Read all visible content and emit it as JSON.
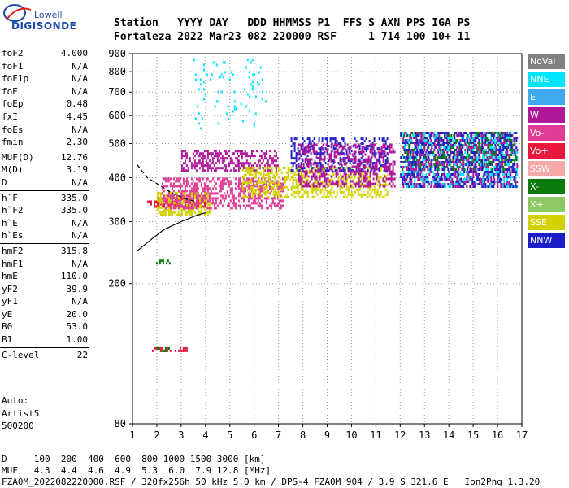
{
  "logo": {
    "line1": "Lowell",
    "line2": "DIGISONDE"
  },
  "header": {
    "line1": "Station   YYYY DAY   DDD HHMMSS P1  FFS S AXN PPS IGA PS",
    "line2": "Fortaleza 2022 Mar23 082 220000 RSF     1 714 100 10+ 11"
  },
  "params": {
    "group1": [
      {
        "k": "foF2",
        "v": "4.000"
      },
      {
        "k": "foF1",
        "v": "N/A"
      },
      {
        "k": "foF1p",
        "v": "N/A"
      },
      {
        "k": "foE",
        "v": "N/A"
      },
      {
        "k": "foEp",
        "v": "0.48"
      },
      {
        "k": "fxI",
        "v": "4.45"
      },
      {
        "k": "foEs",
        "v": "N/A"
      },
      {
        "k": "fmin",
        "v": "2.30"
      }
    ],
    "group2": [
      {
        "k": "MUF(D)",
        "v": "12.76"
      },
      {
        "k": "M(D)",
        "v": "3.19"
      },
      {
        "k": "D",
        "v": "N/A"
      }
    ],
    "group3": [
      {
        "k": "h`F",
        "v": "335.0"
      },
      {
        "k": "h`F2",
        "v": "335.0"
      },
      {
        "k": "h`E",
        "v": "N/A"
      },
      {
        "k": "h`Es",
        "v": "N/A"
      }
    ],
    "group4": [
      {
        "k": "hmF2",
        "v": "315.8"
      },
      {
        "k": "hmF1",
        "v": "N/A"
      },
      {
        "k": "hmE",
        "v": "110.0"
      },
      {
        "k": "yF2",
        "v": "39.9"
      },
      {
        "k": "yF1",
        "v": "N/A"
      },
      {
        "k": "yE",
        "v": "20.0"
      },
      {
        "k": "B0",
        "v": "53.0"
      },
      {
        "k": "B1",
        "v": "1.00"
      }
    ],
    "group5": [
      {
        "k": "C-level",
        "v": "22"
      }
    ]
  },
  "auto": {
    "line1": "Auto:",
    "line2": "Artist5",
    "line3": "500200"
  },
  "legend": [
    {
      "label": "NoVal",
      "color": "#808080"
    },
    {
      "label": "NNE",
      "color": "#00e5ff"
    },
    {
      "label": "E",
      "color": "#3ea8f0"
    },
    {
      "label": "W",
      "color": "#b0169a"
    },
    {
      "label": "Vo-",
      "color": "#e03c96"
    },
    {
      "label": "Vo+",
      "color": "#e8183c"
    },
    {
      "label": "SSW",
      "color": "#f5a8a8"
    },
    {
      "label": "X-",
      "color": "#0a7a0a"
    },
    {
      "label": "X+",
      "color": "#8cc864"
    },
    {
      "label": "SSE",
      "color": "#d2d200"
    },
    {
      "label": "NNW",
      "color": "#1e1ec8"
    }
  ],
  "footer": {
    "line1": "D     100  200  400  600  800 1000 1500 3000 [km]",
    "line2": "MUF   4.3  4.4  4.6  4.9  5.3  6.0  7.9 12.8 [MHz]",
    "line3": "FZA0M_2022082220000.RSF / 320fx256h 50 kHz 5.0 km / DPS-4 FZA0M 904 / 3.9 S 321.6 E   Ion2Png 1.3.20"
  },
  "chart_data": {
    "type": "scatter",
    "x_ticks": [
      "1",
      "2",
      "3",
      "4",
      "5",
      "6",
      "7",
      "8",
      "9",
      "10",
      "11",
      "12",
      "13",
      "14",
      "15",
      "16",
      "17"
    ],
    "y_ticks": [
      "80",
      "200",
      "300",
      "400",
      "500",
      "600",
      "700",
      "800",
      "900"
    ],
    "xlim": [
      1,
      17
    ],
    "ylim": [
      80,
      900
    ],
    "y_scale": "log",
    "grid": "dotted",
    "profile_curve": [
      [
        1.2,
        248
      ],
      [
        1.8,
        268
      ],
      [
        2.3,
        285
      ],
      [
        3.0,
        300
      ],
      [
        3.6,
        312
      ],
      [
        4.0,
        318
      ]
    ],
    "dashed_curve": [
      [
        1.2,
        435
      ],
      [
        1.6,
        400
      ],
      [
        2.0,
        385
      ],
      [
        2.6,
        362
      ],
      [
        3.2,
        348
      ],
      [
        3.6,
        342
      ]
    ],
    "trace_clusters": [
      {
        "direction": "Vo+",
        "x_range": [
          1.6,
          4.0
        ],
        "h_range": [
          330,
          350
        ],
        "density": 0.7
      },
      {
        "direction": "SSE",
        "x_range": [
          2.0,
          4.2
        ],
        "h_range": [
          315,
          365
        ],
        "density": 0.6
      },
      {
        "direction": "W",
        "x_range": [
          3.0,
          7.0
        ],
        "h_range": [
          420,
          480
        ],
        "density": 0.5
      },
      {
        "direction": "Vo-",
        "x_range": [
          2.2,
          7.2
        ],
        "h_range": [
          330,
          400
        ],
        "density": 0.5
      },
      {
        "direction": "SSE",
        "x_range": [
          5.5,
          11.5
        ],
        "h_range": [
          350,
          430
        ],
        "density": 0.45
      },
      {
        "direction": "NNW",
        "x_range": [
          7.5,
          11.5
        ],
        "h_range": [
          420,
          520
        ],
        "density": 0.4
      },
      {
        "direction": "W",
        "x_range": [
          7.8,
          11.8
        ],
        "h_range": [
          380,
          500
        ],
        "density": 0.4
      },
      {
        "direction": "NNE",
        "x_range": [
          12.1,
          16.8
        ],
        "h_range": [
          380,
          540
        ],
        "density": 0.45
      },
      {
        "direction": "W",
        "x_range": [
          12.1,
          16.8
        ],
        "h_range": [
          380,
          540
        ],
        "density": 0.35
      },
      {
        "direction": "X-",
        "x_range": [
          12.0,
          16.8
        ],
        "h_range": [
          420,
          540
        ],
        "density": 0.2
      },
      {
        "direction": "NNW",
        "x_range": [
          12.0,
          16.8
        ],
        "h_range": [
          380,
          540
        ],
        "density": 0.25
      },
      {
        "direction": "NNE",
        "x_range": [
          3.5,
          6.5
        ],
        "h_range": [
          550,
          870
        ],
        "density": 0.05
      },
      {
        "direction": "Vo+",
        "x_range": [
          1.8,
          3.3
        ],
        "h_range": [
          128,
          132
        ],
        "density": 0.6
      },
      {
        "direction": "X-",
        "x_range": [
          2.0,
          2.6
        ],
        "h_range": [
          128,
          132
        ],
        "density": 0.6
      },
      {
        "direction": "X-",
        "x_range": [
          1.9,
          2.6
        ],
        "h_range": [
          228,
          234
        ],
        "density": 0.5
      }
    ]
  }
}
